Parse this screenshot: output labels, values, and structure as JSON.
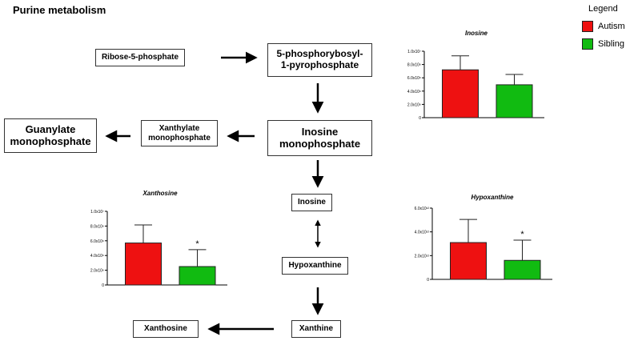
{
  "title": "Purine metabolism",
  "legend": {
    "title": "Legend",
    "items": [
      {
        "label": "Autism",
        "color": "#ee1111"
      },
      {
        "label": "Sibling",
        "color": "#11bb11"
      }
    ]
  },
  "nodes": {
    "ribose": "Ribose-5-phosphate",
    "prpp": "5-phosphorybosyl-\n1-pyrophosphate",
    "imp": "Inosine\nmonophosphate",
    "xmp": "Xanthylate\nmonophosphate",
    "gmp": "Guanylate\nmonophosphate",
    "inosine": "Inosine",
    "hypoxanthine": "Hypoxanthine",
    "xanthine": "Xanthine",
    "xanthosine": "Xanthosine"
  },
  "chart_data": [
    {
      "type": "bar",
      "title": "Inosine",
      "categories": [
        "Autism",
        "Sibling"
      ],
      "values": [
        7200000,
        4950000
      ],
      "errors": [
        2100000,
        1550000
      ],
      "significance": [
        "",
        ""
      ],
      "ylim": [
        0,
        10000000
      ],
      "yticks": [
        "0",
        "2.0x10⁶",
        "4.0x10⁶",
        "6.0x10⁶",
        "8.0x10⁶",
        "1.0x10⁷"
      ],
      "colors": [
        "#ee1111",
        "#11bb11"
      ]
    },
    {
      "type": "bar",
      "title": "Xanthosine",
      "categories": [
        "Autism",
        "Sibling"
      ],
      "values": [
        5700000,
        2500000
      ],
      "errors": [
        2450000,
        2300000
      ],
      "significance": [
        "",
        "*"
      ],
      "ylim": [
        0,
        10000000
      ],
      "yticks": [
        "0",
        "2.0x10⁶",
        "4.0x10⁶",
        "6.0x10⁶",
        "8.0x10⁶",
        "1.0x10⁷"
      ],
      "colors": [
        "#ee1111",
        "#11bb11"
      ]
    },
    {
      "type": "bar",
      "title": "Hypoxanthine",
      "categories": [
        "Autism",
        "Sibling"
      ],
      "values": [
        3100000000000,
        1600000000000
      ],
      "errors": [
        1950000000000,
        1700000000000
      ],
      "significance": [
        "",
        "*"
      ],
      "ylim": [
        0,
        6000000000000
      ],
      "yticks": [
        "0",
        "2.0x10¹²",
        "4.0x10¹²",
        "6.0x10¹²"
      ],
      "colors": [
        "#ee1111",
        "#11bb11"
      ]
    }
  ]
}
